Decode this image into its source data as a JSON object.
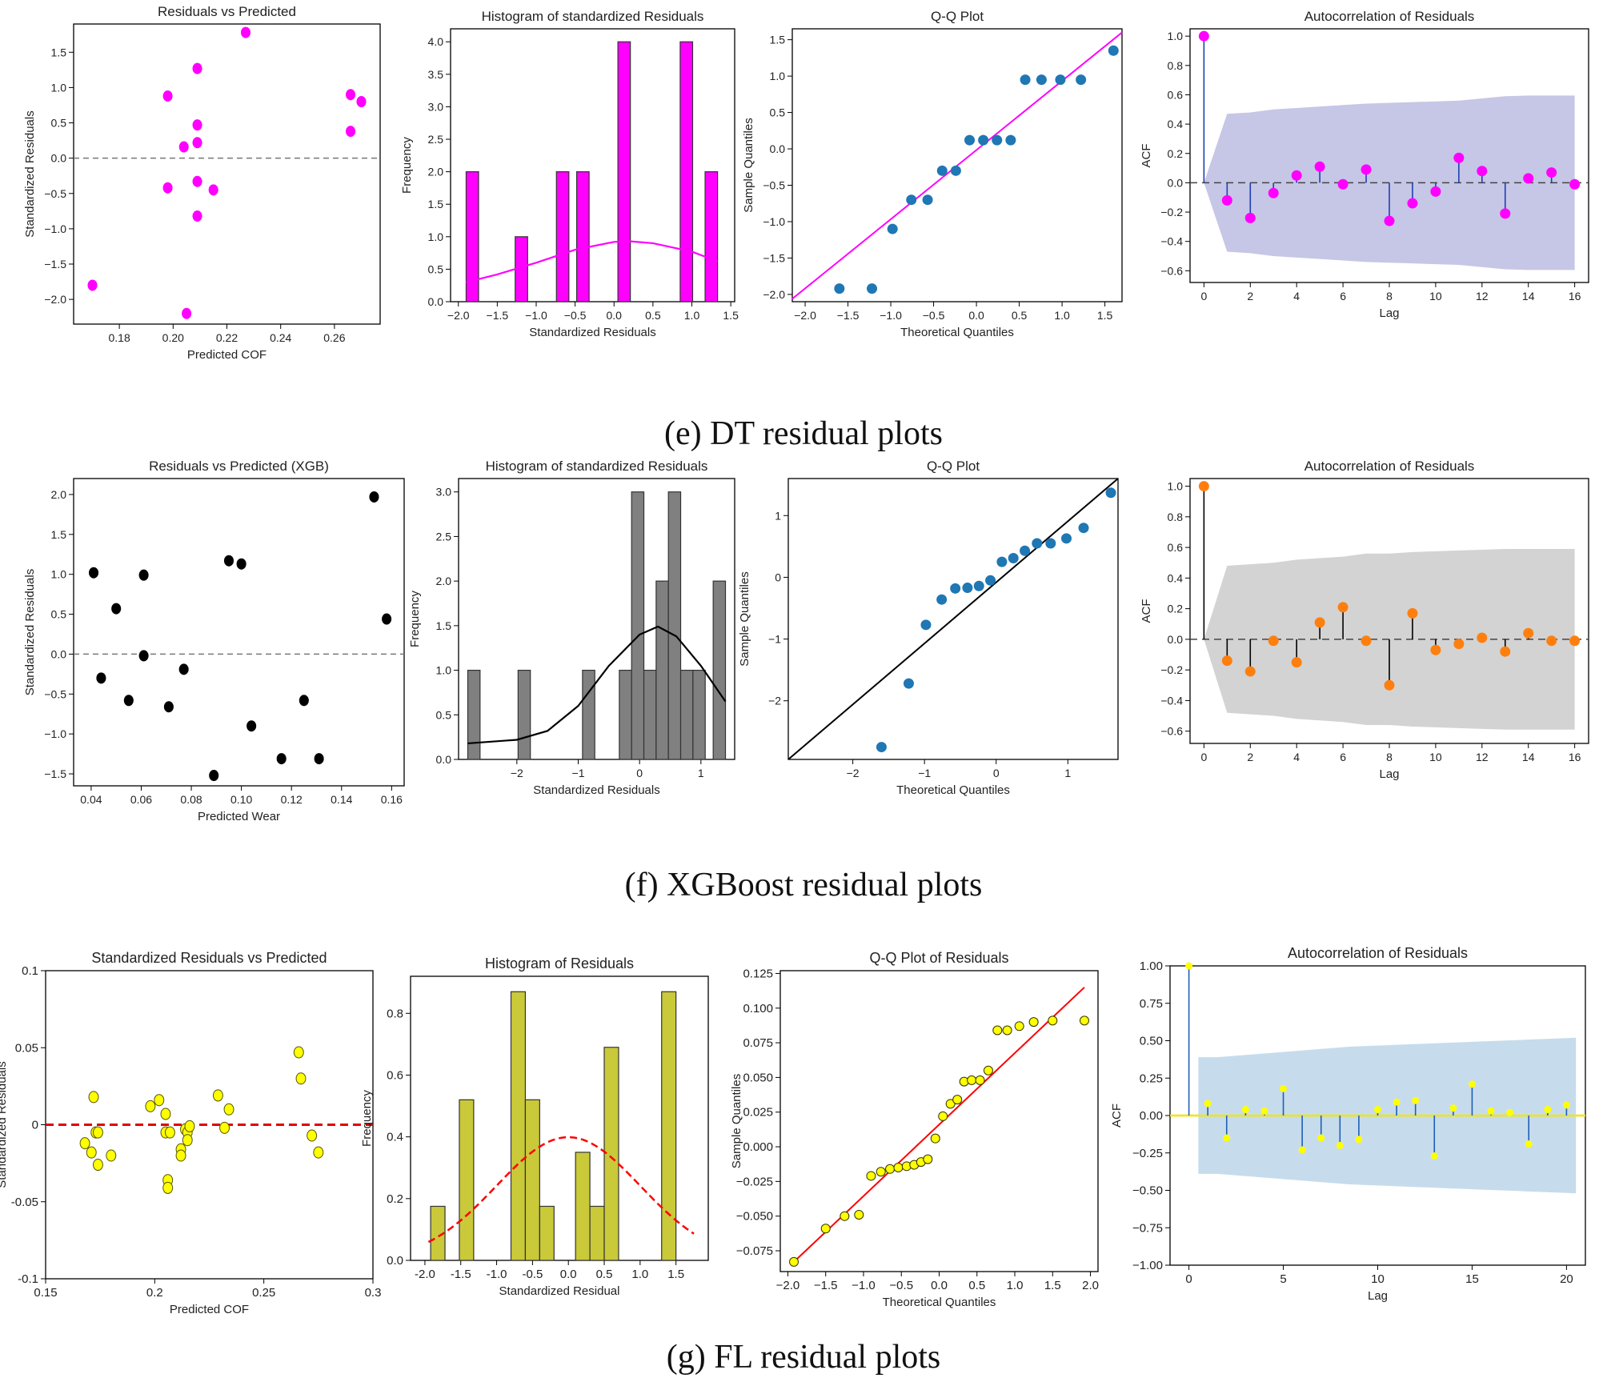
{
  "captions": {
    "e": "(e)  DT residual plots",
    "f": "(f)  XGBoost residual plots",
    "g": "(g)  FL residual plots"
  },
  "colors": {
    "dt": "#ff00ff",
    "xgb_scatter": "#000000",
    "xgb_bar": "#808080",
    "xgb_acf": "#ff7f0e",
    "qq_point": "#1f77b4",
    "fl_point": "#ffff00",
    "fl_bar": "#c9c93a",
    "fl_line": "#ff0000",
    "acf_band_dt": "#b8b8e0",
    "acf_band_xgb": "#c8c8c8",
    "acf_band_fl": "#bcd6ea",
    "acf_stem_blue": "#1f5fb4"
  },
  "chart_data": [
    {
      "id": "e1",
      "type": "scatter",
      "title": "Residuals vs Predicted",
      "xlabel": "Predicted COF",
      "ylabel": "Standardized Residuals",
      "xlim": [
        0.163,
        0.277
      ],
      "ylim": [
        -2.35,
        1.9
      ],
      "xticks": [
        0.18,
        0.2,
        0.22,
        0.24,
        0.26
      ],
      "xticklabels": [
        "0.18",
        "0.20",
        "0.22",
        "0.24",
        "0.26"
      ],
      "yticks": [
        -2.0,
        -1.5,
        -1.0,
        -0.5,
        0.0,
        0.5,
        1.0,
        1.5
      ],
      "yticklabels": [
        "−2.0",
        "−1.5",
        "−1.0",
        "−0.5",
        "0.0",
        "0.5",
        "1.0",
        "1.5"
      ],
      "x": [
        0.17,
        0.198,
        0.198,
        0.204,
        0.205,
        0.209,
        0.209,
        0.209,
        0.209,
        0.209,
        0.215,
        0.227,
        0.266,
        0.266,
        0.27
      ],
      "y": [
        -1.8,
        0.88,
        -0.42,
        0.16,
        -2.2,
        1.27,
        0.47,
        0.22,
        -0.33,
        -0.82,
        -0.45,
        1.78,
        0.9,
        0.38,
        0.8
      ],
      "refline": 0,
      "refstyle": "dashed-gray"
    },
    {
      "id": "e2",
      "type": "histogram",
      "title": "Histogram of standardized Residuals",
      "xlabel": "Standardized Residuals",
      "ylabel": "Frequency",
      "xlim": [
        -2.1,
        1.55
      ],
      "ylim": [
        0,
        4.2
      ],
      "xticks": [
        -2.0,
        -1.5,
        -1.0,
        -0.5,
        0.0,
        0.5,
        1.0,
        1.5
      ],
      "xticklabels": [
        "−2.0",
        "−1.5",
        "−1.0",
        "−0.5",
        "0.0",
        "0.5",
        "1.0",
        "1.5"
      ],
      "yticks": [
        0,
        0.5,
        1.0,
        1.5,
        2.0,
        2.5,
        3.0,
        3.5,
        4.0
      ],
      "yticklabels": [
        "0.0",
        "0.5",
        "1.0",
        "1.5",
        "2.0",
        "2.5",
        "3.0",
        "3.5",
        "4.0"
      ],
      "bins": [
        {
          "x0": -1.9,
          "x1": -1.74,
          "h": 2
        },
        {
          "x0": -1.27,
          "x1": -1.11,
          "h": 1
        },
        {
          "x0": -0.74,
          "x1": -0.58,
          "h": 2
        },
        {
          "x0": -0.48,
          "x1": -0.32,
          "h": 2
        },
        {
          "x0": 0.05,
          "x1": 0.21,
          "h": 4
        },
        {
          "x0": 0.85,
          "x1": 1.01,
          "h": 4
        },
        {
          "x0": 1.17,
          "x1": 1.33,
          "h": 2
        }
      ],
      "kde": {
        "x": [
          -1.9,
          -1.5,
          -1.0,
          -0.5,
          0.0,
          0.2,
          0.5,
          1.0,
          1.33
        ],
        "y": [
          0.3,
          0.42,
          0.6,
          0.8,
          0.92,
          0.93,
          0.9,
          0.77,
          0.62
        ]
      }
    },
    {
      "id": "e3",
      "type": "qq",
      "title": "Q-Q Plot",
      "xlabel": "Theoretical Quantiles",
      "ylabel": "Sample Quantiles",
      "xlim": [
        -2.15,
        1.7
      ],
      "ylim": [
        -2.1,
        1.65
      ],
      "xticks": [
        -2.0,
        -1.5,
        -1.0,
        -0.5,
        0.0,
        0.5,
        1.0,
        1.5
      ],
      "xticklabels": [
        "−2.0",
        "−1.5",
        "−1.0",
        "−0.5",
        "0.0",
        "0.5",
        "1.0",
        "1.5"
      ],
      "yticks": [
        -2.0,
        -1.5,
        -1.0,
        -0.5,
        0.0,
        0.5,
        1.0,
        1.5
      ],
      "yticklabels": [
        "−2.0",
        "−1.5",
        "−1.0",
        "−0.5",
        "0.0",
        "0.5",
        "1.0",
        "1.5"
      ],
      "x": [
        -1.6,
        -1.22,
        -0.98,
        -0.76,
        -0.57,
        -0.4,
        -0.24,
        -0.08,
        0.08,
        0.24,
        0.4,
        0.57,
        0.76,
        0.98,
        1.22,
        1.6
      ],
      "y": [
        -1.92,
        -1.92,
        -1.1,
        -0.7,
        -0.7,
        -0.3,
        -0.3,
        0.12,
        0.12,
        0.12,
        0.12,
        0.95,
        0.95,
        0.95,
        0.95,
        1.35
      ],
      "line": [
        [
          -2.15,
          -2.06
        ],
        [
          1.7,
          1.6
        ]
      ]
    },
    {
      "id": "e4",
      "type": "acf",
      "title": "Autocorrelation of Residuals",
      "xlabel": "Lag",
      "ylabel": "ACF",
      "xlim": [
        -0.6,
        16.6
      ],
      "ylim": [
        -0.68,
        1.05
      ],
      "xticks": [
        0,
        2,
        4,
        6,
        8,
        10,
        12,
        14,
        16
      ],
      "xticklabels": [
        "0",
        "2",
        "4",
        "6",
        "8",
        "10",
        "12",
        "14",
        "16"
      ],
      "yticks": [
        -0.6,
        -0.4,
        -0.2,
        0.0,
        0.2,
        0.4,
        0.6,
        0.8,
        1.0
      ],
      "yticklabels": [
        "−0.6",
        "−0.4",
        "−0.2",
        "0.0",
        "0.2",
        "0.4",
        "0.6",
        "0.8",
        "1.0"
      ],
      "values": [
        1.0,
        -0.12,
        -0.24,
        -0.07,
        0.05,
        0.11,
        -0.01,
        0.09,
        -0.26,
        -0.14,
        -0.06,
        0.17,
        0.08,
        -0.21,
        0.03,
        0.07,
        -0.01
      ],
      "band": [
        0,
        0.47,
        0.48,
        0.5,
        0.51,
        0.52,
        0.53,
        0.54,
        0.545,
        0.55,
        0.555,
        0.56,
        0.575,
        0.59,
        0.595,
        0.595,
        0.595
      ]
    },
    {
      "id": "f1",
      "type": "scatter",
      "title": "Residuals vs Predicted (XGB)",
      "xlabel": "Predicted Wear",
      "ylabel": "Standardized Residuals",
      "xlim": [
        0.033,
        0.165
      ],
      "ylim": [
        -1.65,
        2.2
      ],
      "xticks": [
        0.04,
        0.06,
        0.08,
        0.1,
        0.12,
        0.14,
        0.16
      ],
      "xticklabels": [
        "0.04",
        "0.06",
        "0.08",
        "0.10",
        "0.12",
        "0.14",
        "0.16"
      ],
      "yticks": [
        -1.5,
        -1.0,
        -0.5,
        0.0,
        0.5,
        1.0,
        1.5,
        2.0
      ],
      "yticklabels": [
        "−1.5",
        "−1.0",
        "−0.5",
        "0.0",
        "0.5",
        "1.0",
        "1.5",
        "2.0"
      ],
      "x": [
        0.041,
        0.044,
        0.05,
        0.055,
        0.061,
        0.061,
        0.071,
        0.077,
        0.089,
        0.095,
        0.1,
        0.104,
        0.116,
        0.125,
        0.131,
        0.153,
        0.158
      ],
      "y": [
        1.02,
        -0.3,
        0.57,
        -0.58,
        0.99,
        -0.02,
        -0.66,
        -0.19,
        -1.52,
        1.17,
        1.13,
        -0.9,
        -1.31,
        -0.58,
        -1.31,
        1.97,
        0.44
      ],
      "refline": 0,
      "refstyle": "dashed-gray"
    },
    {
      "id": "f2",
      "type": "histogram",
      "title": "Histogram of standardized Residuals",
      "xlabel": "Standardized Residuals",
      "ylabel": "Frequency",
      "xlim": [
        -2.95,
        1.55
      ],
      "ylim": [
        0,
        3.15
      ],
      "xticks": [
        -2,
        -1,
        0,
        1
      ],
      "xticklabels": [
        "−2",
        "−1",
        "0",
        "1"
      ],
      "yticks": [
        0,
        0.5,
        1.0,
        1.5,
        2.0,
        2.5,
        3.0
      ],
      "yticklabels": [
        "0.0",
        "0.5",
        "1.0",
        "1.5",
        "2.0",
        "2.5",
        "3.0"
      ],
      "bins": [
        {
          "x0": -2.8,
          "x1": -2.6,
          "h": 1
        },
        {
          "x0": -1.98,
          "x1": -1.78,
          "h": 1
        },
        {
          "x0": -0.93,
          "x1": -0.73,
          "h": 1
        },
        {
          "x0": -0.33,
          "x1": -0.13,
          "h": 1
        },
        {
          "x0": -0.13,
          "x1": 0.07,
          "h": 3
        },
        {
          "x0": 0.07,
          "x1": 0.27,
          "h": 1
        },
        {
          "x0": 0.27,
          "x1": 0.47,
          "h": 2
        },
        {
          "x0": 0.47,
          "x1": 0.67,
          "h": 3
        },
        {
          "x0": 0.67,
          "x1": 0.87,
          "h": 1
        },
        {
          "x0": 0.87,
          "x1": 1.07,
          "h": 1
        },
        {
          "x0": 1.2,
          "x1": 1.4,
          "h": 2
        }
      ],
      "kde": {
        "x": [
          -2.8,
          -2.0,
          -1.5,
          -1.0,
          -0.5,
          0.0,
          0.3,
          0.6,
          1.0,
          1.4
        ],
        "y": [
          0.18,
          0.22,
          0.32,
          0.6,
          1.05,
          1.4,
          1.49,
          1.38,
          1.05,
          0.65
        ]
      }
    },
    {
      "id": "f3",
      "type": "qq",
      "title": "Q-Q Plot",
      "xlabel": "Theoretical Quantiles",
      "ylabel": "Sample Quantiles",
      "xlim": [
        -2.9,
        1.7
      ],
      "ylim": [
        -2.95,
        1.6
      ],
      "xticks": [
        -2,
        -1,
        0,
        1
      ],
      "xticklabels": [
        "−2",
        "−1",
        "0",
        "1"
      ],
      "yticks": [
        -2,
        -1,
        0,
        1
      ],
      "yticklabels": [
        "−2",
        "−1",
        "0",
        "1"
      ],
      "x": [
        -1.6,
        -1.22,
        -0.98,
        -0.76,
        -0.57,
        -0.4,
        -0.24,
        -0.08,
        0.08,
        0.24,
        0.4,
        0.57,
        0.76,
        0.98,
        1.22,
        1.6
      ],
      "y": [
        -2.75,
        -1.72,
        -0.77,
        -0.36,
        -0.18,
        -0.17,
        -0.14,
        -0.05,
        0.25,
        0.31,
        0.43,
        0.55,
        0.55,
        0.63,
        0.8,
        1.37
      ],
      "line": [
        [
          -2.9,
          -2.95
        ],
        [
          1.7,
          1.6
        ]
      ]
    },
    {
      "id": "f4",
      "type": "acf",
      "title": "Autocorrelation of Residuals",
      "xlabel": "Lag",
      "ylabel": "ACF",
      "xlim": [
        -0.6,
        16.6
      ],
      "ylim": [
        -0.68,
        1.05
      ],
      "xticks": [
        0,
        2,
        4,
        6,
        8,
        10,
        12,
        14,
        16
      ],
      "xticklabels": [
        "0",
        "2",
        "4",
        "6",
        "8",
        "10",
        "12",
        "14",
        "16"
      ],
      "yticks": [
        -0.6,
        -0.4,
        -0.2,
        0.0,
        0.2,
        0.4,
        0.6,
        0.8,
        1.0
      ],
      "yticklabels": [
        "−0.6",
        "−0.4",
        "−0.2",
        "0.0",
        "0.2",
        "0.4",
        "0.6",
        "0.8",
        "1.0"
      ],
      "values": [
        1.0,
        -0.14,
        -0.21,
        -0.01,
        -0.15,
        0.11,
        0.21,
        -0.01,
        -0.3,
        0.17,
        -0.07,
        -0.03,
        0.01,
        -0.08,
        0.04,
        -0.01,
        -0.01
      ],
      "band": [
        0,
        0.48,
        0.49,
        0.5,
        0.52,
        0.53,
        0.54,
        0.56,
        0.56,
        0.57,
        0.575,
        0.58,
        0.585,
        0.59,
        0.59,
        0.59,
        0.59
      ]
    },
    {
      "id": "g1",
      "type": "scatter",
      "title": "Standardized Residuals vs Predicted",
      "xlabel": "Predicted COF",
      "ylabel": "Standardized Residuals",
      "xlim": [
        0.15,
        0.3
      ],
      "ylim": [
        -0.1,
        0.1
      ],
      "xticks": [
        0.15,
        0.2,
        0.25,
        0.3
      ],
      "xticklabels": [
        "0.15",
        "0.2",
        "0.25",
        "0.3"
      ],
      "yticks": [
        -0.1,
        -0.05,
        0,
        0.05,
        0.1
      ],
      "yticklabels": [
        "-0.1",
        "-0.05",
        "0",
        "0.05",
        "0.1"
      ],
      "x": [
        0.168,
        0.171,
        0.172,
        0.173,
        0.174,
        0.174,
        0.18,
        0.198,
        0.202,
        0.205,
        0.205,
        0.206,
        0.206,
        0.207,
        0.212,
        0.212,
        0.214,
        0.215,
        0.215,
        0.216,
        0.229,
        0.232,
        0.234,
        0.266,
        0.267,
        0.272,
        0.275
      ],
      "y": [
        -0.012,
        -0.018,
        0.018,
        -0.005,
        -0.026,
        -0.005,
        -0.02,
        0.012,
        0.016,
        0.007,
        -0.005,
        -0.036,
        -0.041,
        -0.005,
        -0.016,
        -0.02,
        -0.003,
        -0.005,
        -0.01,
        -0.001,
        0.019,
        -0.002,
        0.01,
        0.047,
        0.03,
        -0.007,
        -0.018
      ],
      "refline": 0,
      "refstyle": "dashed-red"
    },
    {
      "id": "g2",
      "type": "histogram",
      "title": "Histogram of Residuals",
      "xlabel": "Standardized Residual",
      "ylabel": "Frequency",
      "xlim": [
        -2.2,
        1.95
      ],
      "ylim": [
        0,
        0.92
      ],
      "xticks": [
        -2.0,
        -1.5,
        -1.0,
        -0.5,
        0.0,
        0.5,
        1.0,
        1.5
      ],
      "xticklabels": [
        "-2.0",
        "-1.5",
        "-1.0",
        "-0.5",
        "0.0",
        "0.5",
        "1.0",
        "1.5"
      ],
      "yticks": [
        0,
        0.2,
        0.4,
        0.6,
        0.8
      ],
      "yticklabels": [
        "0.0",
        "0.2",
        "0.4",
        "0.6",
        "0.8"
      ],
      "bins": [
        {
          "x0": -1.92,
          "x1": -1.72,
          "h": 0.175
        },
        {
          "x0": -1.52,
          "x1": -1.32,
          "h": 0.52
        },
        {
          "x0": -0.8,
          "x1": -0.6,
          "h": 0.87
        },
        {
          "x0": -0.6,
          "x1": -0.4,
          "h": 0.52
        },
        {
          "x0": -0.4,
          "x1": -0.2,
          "h": 0.175
        },
        {
          "x0": 0.1,
          "x1": 0.3,
          "h": 0.35
        },
        {
          "x0": 0.3,
          "x1": 0.5,
          "h": 0.175
        },
        {
          "x0": 0.5,
          "x1": 0.7,
          "h": 0.69
        },
        {
          "x0": 1.3,
          "x1": 1.5,
          "h": 0.87
        }
      ],
      "pdf": {
        "mu": 0,
        "sigma": 1,
        "xmin": -1.95,
        "xmax": 1.75
      }
    },
    {
      "id": "g3",
      "type": "qq",
      "title": "Q-Q Plot of Residuals",
      "xlabel": "Theoretical Quantiles",
      "ylabel": "Sample Quantiles",
      "xlim": [
        -2.1,
        2.1
      ],
      "ylim": [
        -0.09,
        0.127
      ],
      "xticks": [
        -2.0,
        -1.5,
        -1.0,
        -0.5,
        0.0,
        0.5,
        1.0,
        1.5,
        2.0
      ],
      "xticklabels": [
        "−2.0",
        "−1.5",
        "−1.0",
        "−0.5",
        "0.0",
        "0.5",
        "1.0",
        "1.5",
        "2.0"
      ],
      "yticks": [
        -0.075,
        -0.05,
        -0.025,
        0,
        0.025,
        0.05,
        0.075,
        0.1,
        0.125
      ],
      "yticklabels": [
        "−0.075",
        "−0.050",
        "−0.025",
        "0.000",
        "0.025",
        "0.050",
        "0.075",
        "0.100",
        "0.125"
      ],
      "x": [
        -1.92,
        -1.5,
        -1.25,
        -1.06,
        -0.9,
        -0.77,
        -0.65,
        -0.54,
        -0.43,
        -0.33,
        -0.24,
        -0.15,
        -0.05,
        0.05,
        0.15,
        0.24,
        0.33,
        0.43,
        0.54,
        0.65,
        0.77,
        0.9,
        1.06,
        1.25,
        1.5,
        1.92
      ],
      "y": [
        -0.083,
        -0.059,
        -0.05,
        -0.049,
        -0.021,
        -0.018,
        -0.016,
        -0.015,
        -0.014,
        -0.013,
        -0.011,
        -0.009,
        0.006,
        0.022,
        0.031,
        0.034,
        0.047,
        0.048,
        0.048,
        0.055,
        0.084,
        0.084,
        0.087,
        0.09,
        0.091,
        0.091
      ],
      "line": [
        [
          -1.92,
          -0.083
        ],
        [
          1.92,
          0.115
        ]
      ]
    },
    {
      "id": "g4",
      "type": "acf",
      "title": "Autocorrelation of Residuals",
      "xlabel": "Lag",
      "ylabel": "ACF",
      "xlim": [
        -1,
        21
      ],
      "ylim": [
        -1.0,
        1.0
      ],
      "xticks": [
        0,
        5,
        10,
        15,
        20
      ],
      "xticklabels": [
        "0",
        "5",
        "10",
        "15",
        "20"
      ],
      "yticks": [
        -1.0,
        -0.75,
        -0.5,
        -0.25,
        0.0,
        0.25,
        0.5,
        0.75,
        1.0
      ],
      "yticklabels": [
        "−1.00",
        "−0.75",
        "−0.50",
        "−0.25",
        "0.00",
        "0.25",
        "0.50",
        "0.75",
        "1.00"
      ],
      "values": [
        1.0,
        0.08,
        -0.15,
        0.04,
        0.03,
        0.18,
        -0.23,
        -0.15,
        -0.2,
        -0.16,
        0.04,
        0.09,
        0.1,
        -0.27,
        0.05,
        0.21,
        0.03,
        0.02,
        -0.19,
        0.04,
        0.07
      ],
      "band": [
        0.39,
        0.39,
        0.4,
        0.41,
        0.42,
        0.43,
        0.44,
        0.45,
        0.46,
        0.465,
        0.47,
        0.475,
        0.48,
        0.485,
        0.49,
        0.495,
        0.5,
        0.505,
        0.51,
        0.515,
        0.52
      ],
      "band_x0": 0.5,
      "band_x1": 20.5
    }
  ]
}
